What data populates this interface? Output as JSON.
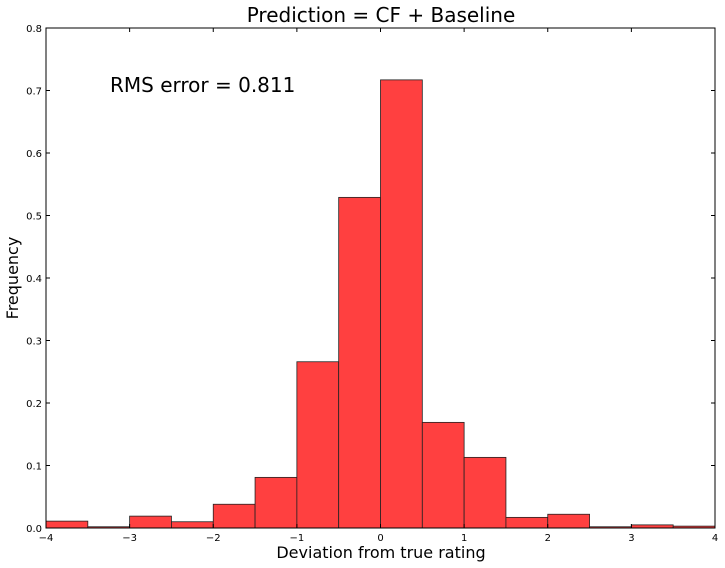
{
  "chart_data": {
    "type": "bar",
    "subtype": "histogram",
    "title": "Prediction = CF + Baseline",
    "xlabel": "Deviation from true rating",
    "ylabel": "Frequency",
    "annotation": "RMS error = 0.811",
    "xlim": [
      -4,
      4
    ],
    "ylim": [
      0,
      0.8
    ],
    "xticks": [
      -4,
      -3,
      -2,
      -1,
      0,
      1,
      2,
      3,
      4
    ],
    "xtick_labels": [
      "−4",
      "−3",
      "−2",
      "−1",
      "0",
      "1",
      "2",
      "3",
      "4"
    ],
    "yticks": [
      0,
      0.1,
      0.2,
      0.3,
      0.4,
      0.5,
      0.6,
      0.7,
      0.8
    ],
    "ytick_labels": [
      "0.0",
      "0.1",
      "0.2",
      "0.3",
      "0.4",
      "0.5",
      "0.6",
      "0.7",
      "0.8"
    ],
    "bin_edges": [
      -4,
      -3.5,
      -3,
      -2.5,
      -2,
      -1.5,
      -1,
      -0.5,
      0,
      0.5,
      1,
      1.5,
      2,
      2.5,
      3,
      3.5,
      4
    ],
    "values": [
      0.011,
      0.002,
      0.019,
      0.01,
      0.038,
      0.081,
      0.266,
      0.529,
      0.717,
      0.169,
      0.113,
      0.017,
      0.022,
      0.002,
      0.005,
      0.003
    ],
    "bar_color": "#ff4040",
    "edge_color": "#222222",
    "grid": false
  }
}
